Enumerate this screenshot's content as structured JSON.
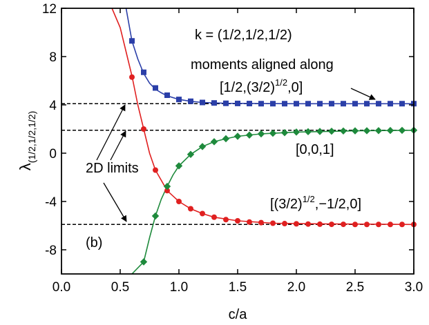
{
  "chart_data": {
    "type": "line",
    "panel_label": "(b)",
    "xlabel": "c/a",
    "ylabel_main": "λ",
    "ylabel_sub": "(1/2,1/2,1/2)",
    "xlim": [
      0.0,
      3.0
    ],
    "ylim": [
      -10,
      12
    ],
    "xticks": [
      0.0,
      0.5,
      1.0,
      1.5,
      2.0,
      2.5,
      3.0
    ],
    "xtick_labels": [
      "0.0",
      "0.5",
      "1.0",
      "1.5",
      "2.0",
      "2.5",
      "3.0"
    ],
    "yticks": [
      12,
      8,
      4,
      0,
      -4,
      -8
    ],
    "ytick_labels": [
      "12",
      "8",
      "4",
      "0",
      "-4",
      "-8"
    ],
    "grid": false,
    "reference_lines": [
      {
        "y": 4.1
      },
      {
        "y": 1.9
      },
      {
        "y": -5.9
      }
    ],
    "annotations": {
      "kvec": "k = (1/2,1/2,1/2)",
      "moments": "moments aligned along",
      "twod": "2D limits",
      "dir_blue": {
        "pre": "[1/2,(3/2)",
        "sup": "1/2",
        "post": ",0]"
      },
      "dir_green": "[0,0,1]",
      "dir_red": {
        "pre": "[(3/2)",
        "sup": "1/2",
        "post": ",−1/2,0]"
      }
    },
    "series": [
      {
        "color": "#2b3fa8",
        "marker": "square",
        "curve": [
          [
            0.55,
            12.0
          ],
          [
            0.6,
            9.3
          ],
          [
            0.65,
            7.8
          ],
          [
            0.7,
            6.6
          ],
          [
            0.75,
            5.8
          ],
          [
            0.8,
            5.3
          ],
          [
            0.85,
            5.0
          ],
          [
            0.9,
            4.75
          ],
          [
            1.0,
            4.45
          ],
          [
            1.1,
            4.3
          ],
          [
            1.2,
            4.2
          ],
          [
            1.4,
            4.13
          ],
          [
            1.7,
            4.11
          ],
          [
            2.0,
            4.1
          ],
          [
            3.0,
            4.1
          ]
        ],
        "x": [
          0.6,
          0.7,
          0.8,
          0.9,
          1.0,
          1.1,
          1.2,
          1.3,
          1.4,
          1.5,
          1.6,
          1.7,
          1.8,
          1.9,
          2.0,
          2.1,
          2.2,
          2.3,
          2.4,
          2.5,
          2.6,
          2.7,
          2.8,
          2.9,
          3.0
        ],
        "y": [
          9.3,
          6.7,
          5.4,
          4.8,
          4.45,
          4.3,
          4.2,
          4.16,
          4.13,
          4.12,
          4.11,
          4.1,
          4.1,
          4.1,
          4.1,
          4.1,
          4.1,
          4.1,
          4.1,
          4.1,
          4.1,
          4.1,
          4.1,
          4.1,
          4.1
        ]
      },
      {
        "color": "#e02020",
        "marker": "circle",
        "curve": [
          [
            0.43,
            12.0
          ],
          [
            0.5,
            10.4
          ],
          [
            0.55,
            8.4
          ],
          [
            0.6,
            6.4
          ],
          [
            0.65,
            4.0
          ],
          [
            0.7,
            2.0
          ],
          [
            0.75,
            0.0
          ],
          [
            0.8,
            -1.4
          ],
          [
            0.9,
            -3.1
          ],
          [
            1.0,
            -4.0
          ],
          [
            1.1,
            -4.6
          ],
          [
            1.2,
            -5.0
          ],
          [
            1.3,
            -5.3
          ],
          [
            1.5,
            -5.6
          ],
          [
            1.8,
            -5.8
          ],
          [
            2.2,
            -5.85
          ],
          [
            3.0,
            -5.9
          ]
        ],
        "x": [
          0.6,
          0.7,
          0.8,
          0.9,
          1.0,
          1.1,
          1.2,
          1.3,
          1.4,
          1.5,
          1.6,
          1.7,
          1.8,
          1.9,
          2.0,
          2.1,
          2.2,
          2.3,
          2.4,
          2.5,
          2.6,
          2.7,
          2.8,
          2.9,
          3.0
        ],
        "y": [
          6.3,
          2.0,
          -1.4,
          -3.1,
          -4.0,
          -4.6,
          -5.0,
          -5.3,
          -5.5,
          -5.6,
          -5.7,
          -5.75,
          -5.8,
          -5.83,
          -5.85,
          -5.87,
          -5.88,
          -5.89,
          -5.89,
          -5.9,
          -5.9,
          -5.9,
          -5.9,
          -5.9,
          -5.9
        ]
      },
      {
        "color": "#1e8a3c",
        "marker": "diamond",
        "curve": [
          [
            0.6,
            -10.0
          ],
          [
            0.7,
            -9.0
          ],
          [
            0.75,
            -7.0
          ],
          [
            0.8,
            -5.2
          ],
          [
            0.85,
            -3.8
          ],
          [
            0.9,
            -2.75
          ],
          [
            0.95,
            -1.8
          ],
          [
            1.0,
            -1.05
          ],
          [
            1.1,
            -0.1
          ],
          [
            1.2,
            0.55
          ],
          [
            1.3,
            0.95
          ],
          [
            1.4,
            1.2
          ],
          [
            1.5,
            1.4
          ],
          [
            1.7,
            1.6
          ],
          [
            2.0,
            1.75
          ],
          [
            2.5,
            1.85
          ],
          [
            3.0,
            1.9
          ]
        ],
        "x": [
          0.7,
          0.8,
          0.9,
          1.0,
          1.1,
          1.2,
          1.3,
          1.4,
          1.5,
          1.6,
          1.7,
          1.8,
          1.9,
          2.0,
          2.1,
          2.2,
          2.3,
          2.4,
          2.5,
          2.6,
          2.7,
          2.8,
          2.9,
          3.0
        ],
        "y": [
          -9.0,
          -5.2,
          -2.75,
          -1.05,
          -0.1,
          0.55,
          0.95,
          1.2,
          1.4,
          1.5,
          1.6,
          1.65,
          1.7,
          1.75,
          1.78,
          1.8,
          1.82,
          1.84,
          1.85,
          1.86,
          1.87,
          1.88,
          1.89,
          1.9
        ]
      }
    ]
  }
}
